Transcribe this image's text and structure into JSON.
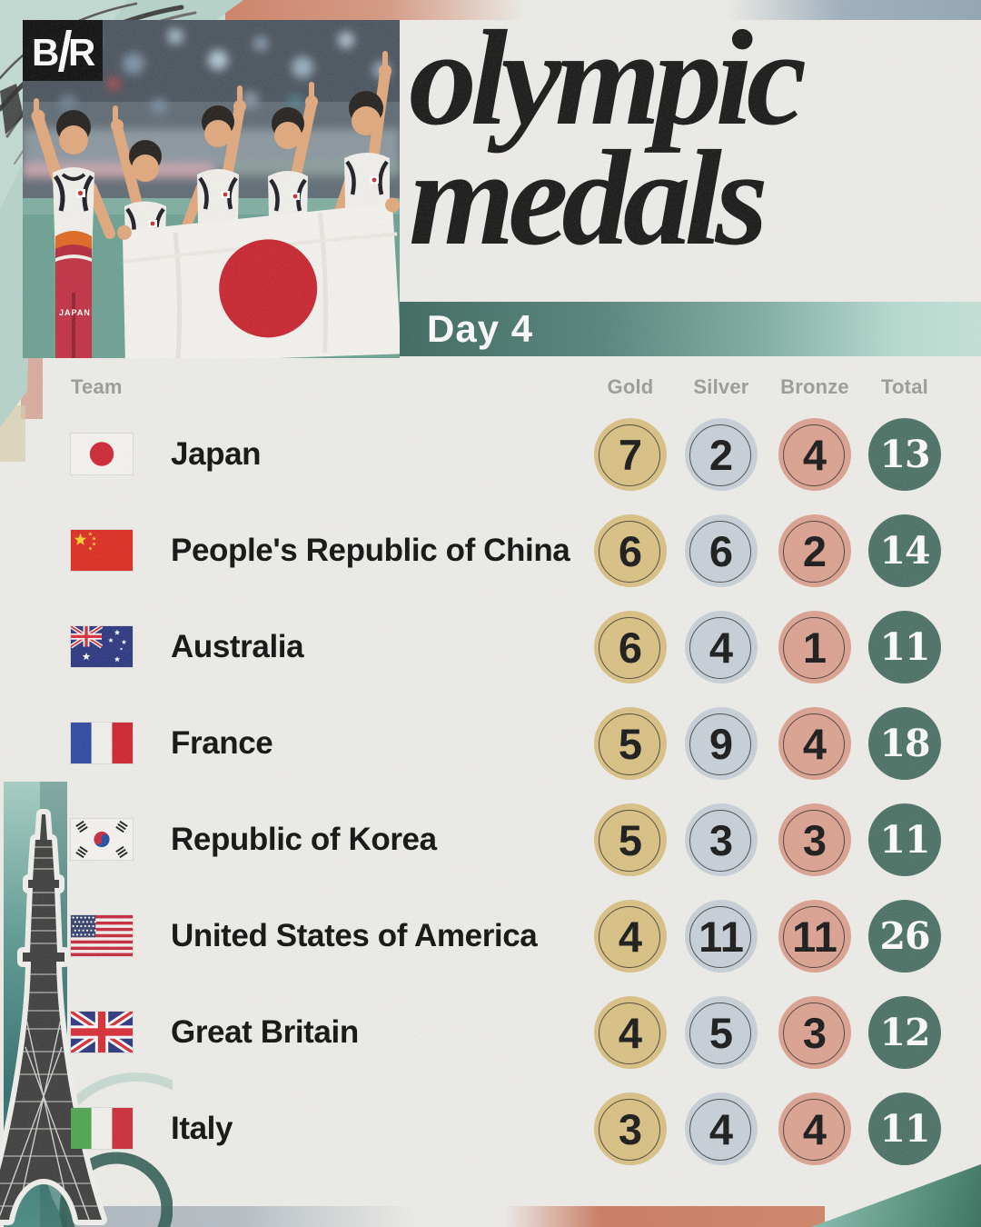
{
  "brand": {
    "name": "B/R",
    "logo_b": "B",
    "logo_r": "R"
  },
  "title": {
    "line1": "olympic",
    "line2": "medals"
  },
  "banner": {
    "label": "Day 4"
  },
  "photo": {
    "alt": "Japan men's gymnastics team celebrating with Japanese flag",
    "jersey_text": "JAPAN"
  },
  "table": {
    "headers": {
      "team": "Team",
      "gold": "Gold",
      "silver": "Silver",
      "bronze": "Bronze",
      "total": "Total"
    },
    "rows": [
      {
        "team": "Japan",
        "flag": "jp",
        "gold": 7,
        "silver": 2,
        "bronze": 4,
        "total": 13
      },
      {
        "team": "People's Republic of China",
        "flag": "cn",
        "gold": 6,
        "silver": 6,
        "bronze": 2,
        "total": 14
      },
      {
        "team": "Australia",
        "flag": "au",
        "gold": 6,
        "silver": 4,
        "bronze": 1,
        "total": 11
      },
      {
        "team": "France",
        "flag": "fr",
        "gold": 5,
        "silver": 9,
        "bronze": 4,
        "total": 18
      },
      {
        "team": "Republic of Korea",
        "flag": "kr",
        "gold": 5,
        "silver": 3,
        "bronze": 3,
        "total": 11
      },
      {
        "team": "United States of America",
        "flag": "us",
        "gold": 4,
        "silver": 11,
        "bronze": 11,
        "total": 26
      },
      {
        "team": "Great Britain",
        "flag": "gb",
        "gold": 4,
        "silver": 5,
        "bronze": 3,
        "total": 12
      },
      {
        "team": "Italy",
        "flag": "it",
        "gold": 3,
        "silver": 4,
        "bronze": 4,
        "total": 11
      }
    ]
  },
  "colors": {
    "background": "#efeeea",
    "gold": "#dbc284",
    "silver": "#c9d1da",
    "bronze": "#dda291",
    "total": "#4a7065",
    "banner_dark": "#3c675e",
    "banner_light": "#c4e3d9",
    "header_gray": "#9b9b9b",
    "title_black": "#161616",
    "salmon": "#cc7a61",
    "mint": "#b7d4cb"
  },
  "chart_data": {
    "type": "table",
    "title": "olympic medals",
    "subtitle": "Day 4",
    "columns": [
      "Team",
      "Gold",
      "Silver",
      "Bronze",
      "Total"
    ],
    "rows": [
      [
        "Japan",
        7,
        2,
        4,
        13
      ],
      [
        "People's Republic of China",
        6,
        6,
        2,
        14
      ],
      [
        "Australia",
        6,
        4,
        1,
        11
      ],
      [
        "France",
        5,
        9,
        4,
        18
      ],
      [
        "Republic of Korea",
        5,
        3,
        3,
        11
      ],
      [
        "United States of America",
        4,
        11,
        11,
        26
      ],
      [
        "Great Britain",
        4,
        5,
        3,
        12
      ],
      [
        "Italy",
        3,
        4,
        4,
        11
      ]
    ]
  }
}
